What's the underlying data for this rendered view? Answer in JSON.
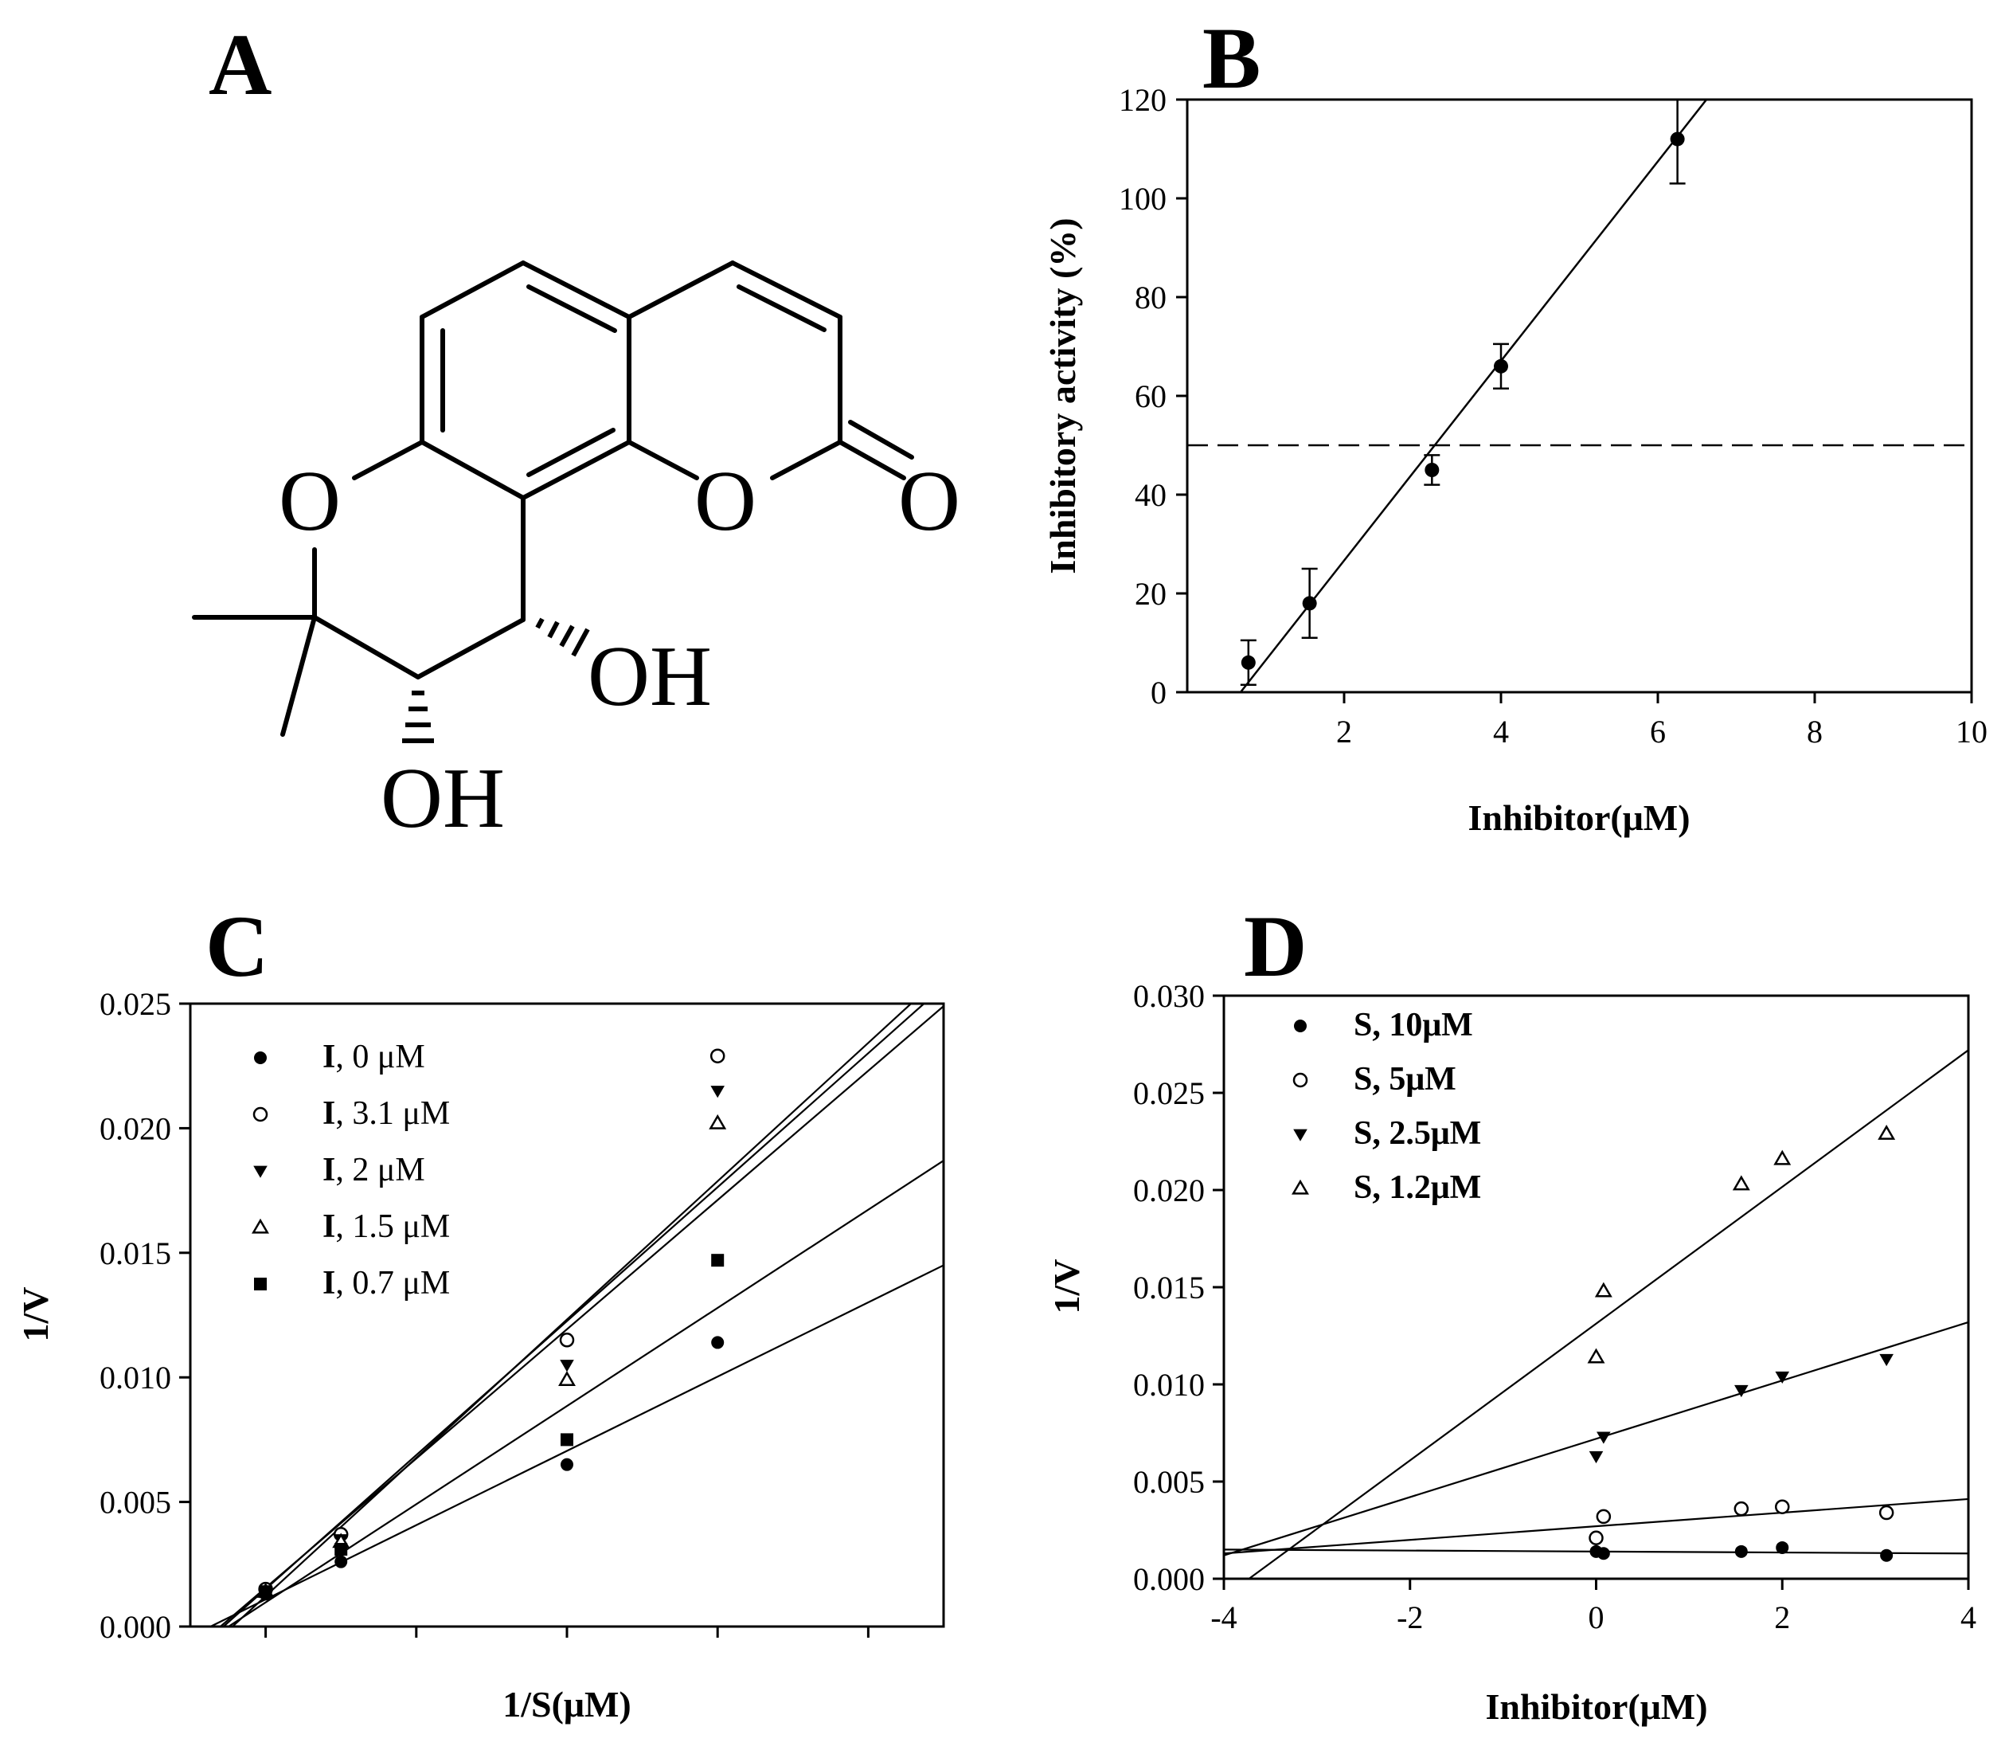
{
  "panels": {
    "A": {
      "label": "A",
      "atoms": {
        "o_left": "O",
        "o_ring": "O",
        "o_carbonyl": "O",
        "oh_top": "OH",
        "oh_bottom": "OH"
      }
    },
    "B": {
      "label": "B"
    },
    "C": {
      "label": "C"
    },
    "D": {
      "label": "D"
    }
  },
  "chart_data": [
    {
      "id": "B",
      "type": "scatter",
      "xlabel": "Inhibitor(μM)",
      "ylabel": "Inhibitory activity (%)",
      "xlim": [
        0,
        10
      ],
      "ylim": [
        0,
        120
      ],
      "xticks": [
        2,
        4,
        6,
        8,
        10
      ],
      "yticks": [
        0,
        20,
        40,
        60,
        80,
        100,
        120
      ],
      "x": [
        0.78,
        1.56,
        3.12,
        4.0,
        6.25
      ],
      "y": [
        6,
        18,
        45,
        66,
        112
      ],
      "yerr": [
        4.5,
        7,
        3,
        4.5,
        9
      ],
      "fit_line": {
        "x": [
          0.68,
          6.62
        ],
        "y": [
          0,
          120
        ]
      },
      "reference_line": {
        "y": 50,
        "style": "dashed"
      },
      "grid": false
    },
    {
      "id": "C",
      "type": "scatter",
      "xlabel": "1/S(μM)",
      "ylabel": "1/V",
      "xlim": [
        -0.5,
        4.5
      ],
      "ylim": [
        0,
        0.025
      ],
      "xticks": [
        0,
        1,
        2,
        3,
        4
      ],
      "yticks": [
        "0.000",
        "0.005",
        "0.010",
        "0.015",
        "0.020",
        "0.025"
      ],
      "legend_position": "top-left",
      "series": [
        {
          "name": "0 μM",
          "marker": "filled-circle",
          "x": [
            0.0,
            0.5,
            2.0,
            3.0
          ],
          "y": [
            0.0013,
            0.0026,
            0.0065,
            0.0114
          ],
          "line": [
            [
              -0.5,
              -0.0004
            ],
            [
              4.5,
              0.0145
            ]
          ]
        },
        {
          "name": "3.1 μM",
          "marker": "open-circle",
          "x": [
            0.0,
            0.5,
            2.0,
            3.0
          ],
          "y": [
            0.0015,
            0.0037,
            0.0115,
            0.0229
          ],
          "line": [
            [
              -0.22,
              0.0
            ],
            [
              4.5,
              0.0262
            ]
          ]
        },
        {
          "name": "2 μM",
          "marker": "filled-triangle-down",
          "x": [
            0.0,
            0.5,
            2.0,
            3.0
          ],
          "y": [
            0.0014,
            0.0035,
            0.0105,
            0.0215
          ],
          "line": [
            [
              -0.28,
              0.0
            ],
            [
              4.5,
              0.0257
            ]
          ]
        },
        {
          "name": "1.5 μM",
          "marker": "open-triangle-up",
          "x": [
            0.0,
            0.5,
            2.0,
            3.0
          ],
          "y": [
            0.0014,
            0.0034,
            0.0099,
            0.0202
          ],
          "line": [
            [
              -0.3,
              0.0
            ],
            [
              4.5,
              0.0249
            ]
          ]
        },
        {
          "name": "0.7 μM",
          "marker": "filled-square",
          "x": [
            0.0,
            0.5,
            2.0,
            3.0
          ],
          "y": [
            0.0014,
            0.0031,
            0.0075,
            0.0147
          ],
          "line": [
            [
              -0.5,
              -0.001
            ],
            [
              4.5,
              0.0187
            ]
          ]
        }
      ],
      "legend_prefix": "I",
      "grid": false
    },
    {
      "id": "D",
      "type": "scatter",
      "xlabel": "Inhibitor(μM)",
      "ylabel": "1/V",
      "xlim": [
        -4,
        4
      ],
      "ylim": [
        0,
        0.03
      ],
      "xticks": [
        -4,
        -2,
        0,
        2,
        4
      ],
      "yticks": [
        "0.000",
        "0.005",
        "0.010",
        "0.015",
        "0.020",
        "0.025",
        "0.030"
      ],
      "legend_position": "top-left",
      "series": [
        {
          "name": "S, 10μM",
          "marker": "filled-circle",
          "x": [
            0.0,
            0.08,
            1.56,
            2.0,
            3.12
          ],
          "y": [
            0.0014,
            0.0013,
            0.0014,
            0.0016,
            0.0012
          ],
          "line": [
            [
              -4,
              0.0015
            ],
            [
              4,
              0.0013
            ]
          ]
        },
        {
          "name": "S, 5μM",
          "marker": "open-circle",
          "x": [
            0.0,
            0.08,
            1.56,
            2.0,
            3.12
          ],
          "y": [
            0.0021,
            0.0032,
            0.0036,
            0.0037,
            0.0034
          ],
          "line": [
            [
              -4,
              0.0013
            ],
            [
              4,
              0.0041
            ]
          ]
        },
        {
          "name": "S, 2.5μM",
          "marker": "filled-triangle-down",
          "x": [
            0.0,
            0.08,
            1.56,
            2.0,
            3.12
          ],
          "y": [
            0.0063,
            0.0073,
            0.0097,
            0.0104,
            0.0113
          ],
          "line": [
            [
              -4,
              0.0012
            ],
            [
              4,
              0.0132
            ]
          ]
        },
        {
          "name": "S, 1.2μM",
          "marker": "open-triangle-up",
          "x": [
            0.0,
            0.08,
            1.56,
            2.0,
            3.12
          ],
          "y": [
            0.0114,
            0.0148,
            0.0203,
            0.0216,
            0.0229
          ],
          "line": [
            [
              -3.73,
              0.0
            ],
            [
              4,
              0.0272
            ]
          ]
        }
      ],
      "grid": false
    }
  ]
}
